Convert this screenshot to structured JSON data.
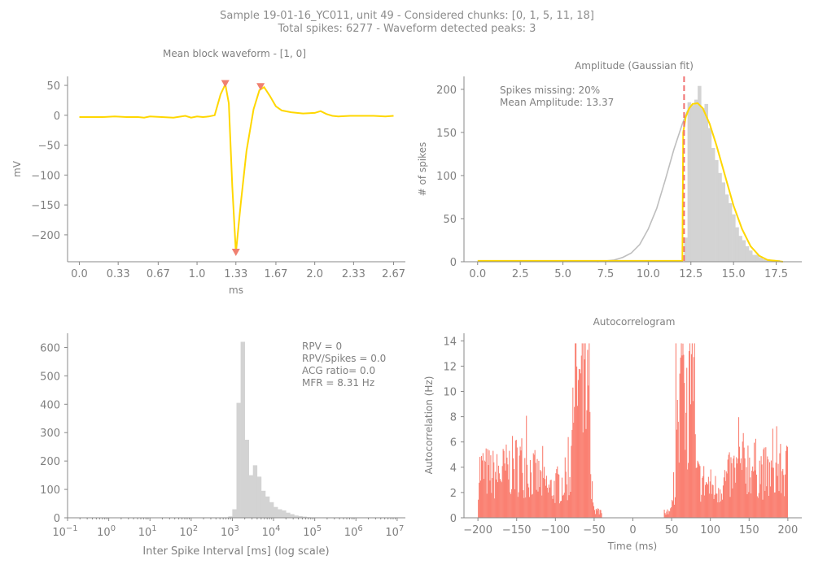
{
  "figure": {
    "title_line1": "Sample 19-01-16_YC011, unit 49 - Considered chunks: [0, 1, 5, 11, 18]",
    "title_line2": "Total spikes: 6277 - Waveform detected peaks: 3"
  },
  "colors": {
    "waveform": "#FFD700",
    "peak_marker": "#F08070",
    "hist_gray": "#D3D3D3",
    "fit_gray": "#BEBEBE",
    "acg": "#FA8072",
    "cutoff_line": "#F07070",
    "axis": "#888888"
  },
  "chart_data": [
    {
      "type": "line",
      "title": "Mean block waveform - [1, 0]",
      "xlabel": "ms",
      "ylabel": "mV",
      "xlim": [
        -0.1,
        2.77
      ],
      "ylim": [
        -245,
        65
      ],
      "xticks": [
        0.0,
        0.33,
        0.67,
        1.0,
        1.33,
        1.67,
        2.0,
        2.33,
        2.67
      ],
      "xtick_labels": [
        "0.0",
        "0.33",
        "0.67",
        "1.0",
        "1.33",
        "1.67",
        "2.0",
        "2.33",
        "2.67"
      ],
      "yticks": [
        50,
        0,
        -50,
        -100,
        -150,
        -200
      ],
      "ytick_labels": [
        "50",
        "0",
        "−50",
        "−100",
        "−150",
        "−200"
      ],
      "series": [
        {
          "x": [
            0.0,
            0.1,
            0.2,
            0.3,
            0.4,
            0.5,
            0.55,
            0.6,
            0.7,
            0.8,
            0.9,
            0.95,
            1.0,
            1.05,
            1.1,
            1.15,
            1.2,
            1.24,
            1.27,
            1.3,
            1.33,
            1.37,
            1.42,
            1.48,
            1.53,
            1.57,
            1.62,
            1.67,
            1.72,
            1.8,
            1.9,
            2.0,
            2.05,
            2.1,
            2.15,
            2.2,
            2.3,
            2.4,
            2.5,
            2.6,
            2.67
          ],
          "y": [
            -3,
            -3,
            -3,
            -2,
            -3,
            -3,
            -4,
            -2,
            -3,
            -4,
            -1,
            -4,
            -2,
            -3,
            -2,
            0,
            35,
            52,
            20,
            -120,
            -230,
            -150,
            -60,
            10,
            42,
            47,
            32,
            15,
            8,
            5,
            3,
            4,
            7,
            2,
            -1,
            -2,
            -1,
            -1,
            -1,
            -2,
            -1
          ]
        }
      ],
      "peaks": [
        {
          "x": 1.24,
          "y": 52
        },
        {
          "x": 1.33,
          "y": -230
        },
        {
          "x": 1.54,
          "y": 47
        }
      ]
    },
    {
      "type": "bar",
      "title": "Amplitude (Gaussian fit)",
      "xlabel": "",
      "ylabel": "# of spikes",
      "xlim": [
        -0.8,
        19.0
      ],
      "ylim": [
        0,
        215
      ],
      "xticks": [
        0.0,
        2.5,
        5.0,
        7.5,
        10.0,
        12.5,
        15.0,
        17.5
      ],
      "xtick_labels": [
        "0.0",
        "2.5",
        "5.0",
        "7.5",
        "10.0",
        "12.5",
        "15.0",
        "17.5"
      ],
      "yticks": [
        0,
        50,
        100,
        150,
        200
      ],
      "ytick_labels": [
        "0",
        "50",
        "100",
        "150",
        "200"
      ],
      "annotations": [
        "Spikes missing: 20%",
        "Mean Amplitude: 13.37"
      ],
      "cutoff_x": 12.1,
      "bin_start": 12.1,
      "bin_width": 0.2,
      "values": [
        28,
        185,
        182,
        188,
        204,
        178,
        183,
        155,
        132,
        118,
        103,
        92,
        78,
        68,
        55,
        40,
        30,
        25,
        18,
        13,
        8,
        8,
        5,
        3,
        3,
        2,
        0,
        2,
        0
      ],
      "fit_gray": {
        "x": [
          7.0,
          8.0,
          8.5,
          9.0,
          9.5,
          10.0,
          10.5,
          11.0,
          11.5,
          12.0,
          12.3,
          12.6,
          12.9,
          13.2,
          13.6,
          14.0,
          14.5,
          15.0,
          15.5,
          16.0,
          16.5,
          17.0,
          17.5,
          17.8
        ],
        "y": [
          0,
          2,
          5,
          10,
          20,
          38,
          62,
          95,
          130,
          160,
          175,
          183,
          184,
          178,
          160,
          135,
          100,
          65,
          38,
          18,
          7,
          2,
          1,
          0
        ]
      },
      "fit_gold": {
        "x": [
          0.0,
          11.9,
          12.0,
          12.05,
          12.2,
          12.4,
          12.6,
          12.9,
          13.2,
          13.6,
          14.0,
          14.5,
          15.0,
          15.5,
          16.0,
          16.5,
          17.0,
          17.5,
          17.9
        ],
        "y": [
          1,
          1,
          1,
          150,
          168,
          178,
          183,
          184,
          178,
          160,
          135,
          100,
          65,
          38,
          18,
          7,
          2,
          1,
          0
        ]
      }
    },
    {
      "type": "bar",
      "title": "",
      "xlabel": "Inter Spike Interval [ms] (log scale)",
      "ylabel": "",
      "xscale": "log",
      "xlim_log10": [
        -1.0,
        7.2
      ],
      "ylim": [
        0,
        650
      ],
      "xticks_log10": [
        -1,
        0,
        1,
        2,
        3,
        4,
        5,
        6,
        7
      ],
      "xtick_exponents": [
        "−1",
        "0",
        "1",
        "2",
        "3",
        "4",
        "5",
        "6",
        "7"
      ],
      "yticks": [
        0,
        100,
        200,
        300,
        400,
        500,
        600
      ],
      "ytick_labels": [
        "0",
        "100",
        "200",
        "300",
        "400",
        "500",
        "600"
      ],
      "annotations": [
        "RPV = 0",
        "RPV/Spikes = 0.0",
        "ACG ratio= 0.0",
        "MFR = 8.31 Hz"
      ],
      "bin_edges_log10": [
        2.9,
        3.0,
        3.1,
        3.2,
        3.3,
        3.4,
        3.5,
        3.6,
        3.7,
        3.8,
        3.9,
        4.0,
        4.1,
        4.2,
        4.3,
        4.4,
        4.5,
        4.6,
        4.7,
        4.8,
        4.9
      ],
      "values": [
        5,
        30,
        405,
        620,
        275,
        150,
        185,
        145,
        95,
        75,
        55,
        38,
        30,
        26,
        18,
        13,
        8,
        6,
        4,
        2
      ]
    },
    {
      "type": "bar",
      "title": "Autocorrelogram",
      "xlabel": "Time (ms)",
      "ylabel": "Autocorrelation (Hz)",
      "xlim": [
        -218,
        218
      ],
      "ylim": [
        0,
        14.6
      ],
      "xticks": [
        -200,
        -150,
        -100,
        -50,
        0,
        50,
        100,
        150,
        200
      ],
      "xtick_labels": [
        "−200",
        "−150",
        "−100",
        "−50",
        "0",
        "50",
        "100",
        "150",
        "200"
      ],
      "yticks": [
        0,
        2,
        4,
        6,
        8,
        10,
        12,
        14
      ],
      "ytick_labels": [
        "0",
        "2",
        "4",
        "6",
        "8",
        "10",
        "12",
        "14"
      ],
      "bin_width_ms": 1
    }
  ]
}
